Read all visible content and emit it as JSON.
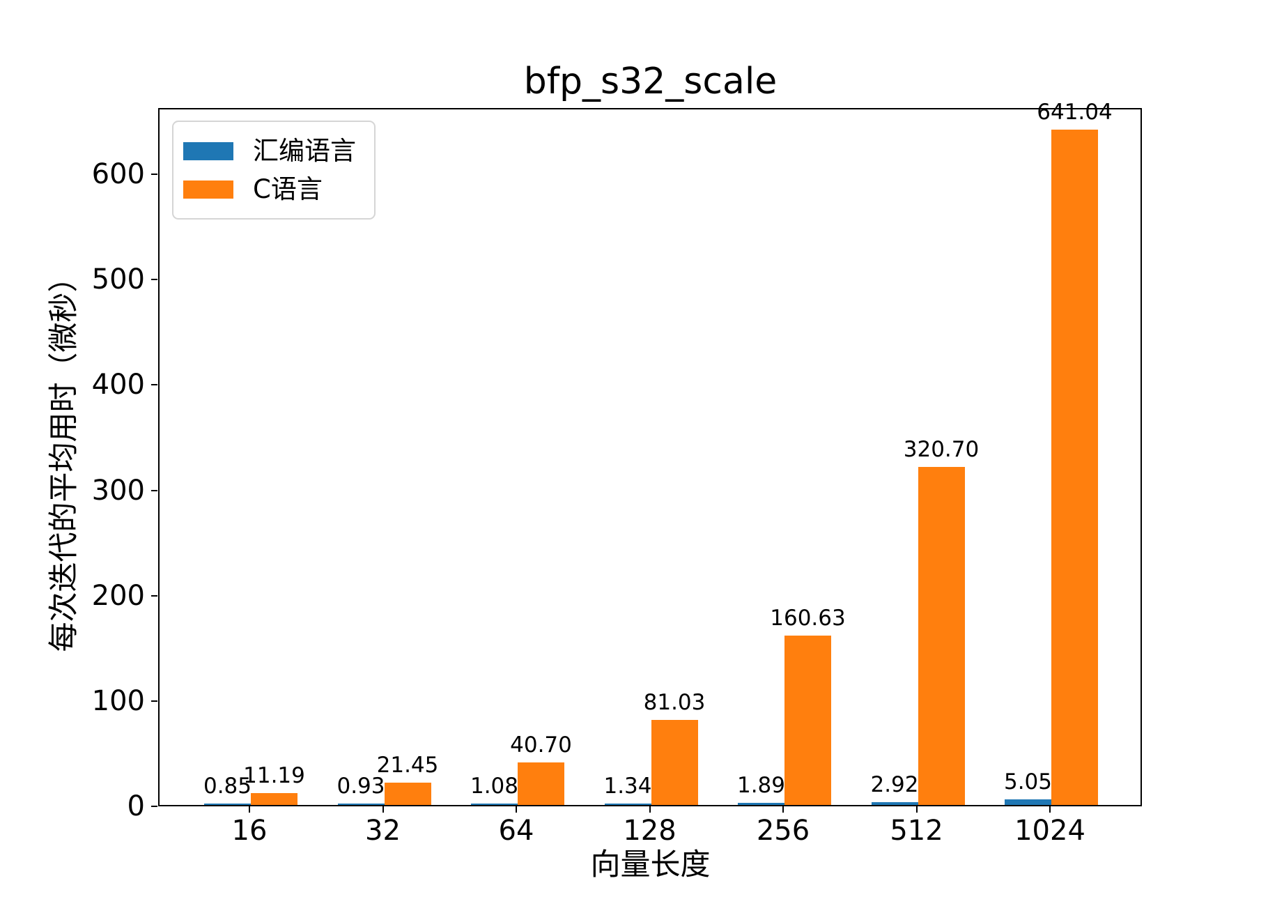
{
  "chart_data": {
    "type": "bar",
    "title": "bfp_s32_scale",
    "xlabel": "向量长度",
    "ylabel": "每次迭代的平均用时（微秒）",
    "categories": [
      "16",
      "32",
      "64",
      "128",
      "256",
      "512",
      "1024"
    ],
    "series": [
      {
        "name": "汇编语言",
        "color": "#1f77b4",
        "values": [
          0.85,
          0.93,
          1.08,
          1.34,
          1.89,
          2.92,
          5.05
        ],
        "labels": [
          "0.85",
          "0.93",
          "1.08",
          "1.34",
          "1.89",
          "2.92",
          "5.05"
        ]
      },
      {
        "name": "C语言",
        "color": "#ff7f0e",
        "values": [
          11.19,
          21.45,
          40.7,
          81.03,
          160.63,
          320.7,
          641.04
        ],
        "labels": [
          "11.19",
          "21.45",
          "40.70",
          "81.03",
          "160.63",
          "320.70",
          "641.04"
        ]
      }
    ],
    "yticks": [
      0,
      100,
      200,
      300,
      400,
      500,
      600
    ],
    "ytick_labels": [
      "0",
      "100",
      "200",
      "300",
      "400",
      "500",
      "600"
    ],
    "ylim": [
      0,
      663
    ],
    "grid": false,
    "legend_position": "upper-left",
    "bar_value_labels": true,
    "axis_color": "#000000",
    "background_color": "#ffffff"
  }
}
